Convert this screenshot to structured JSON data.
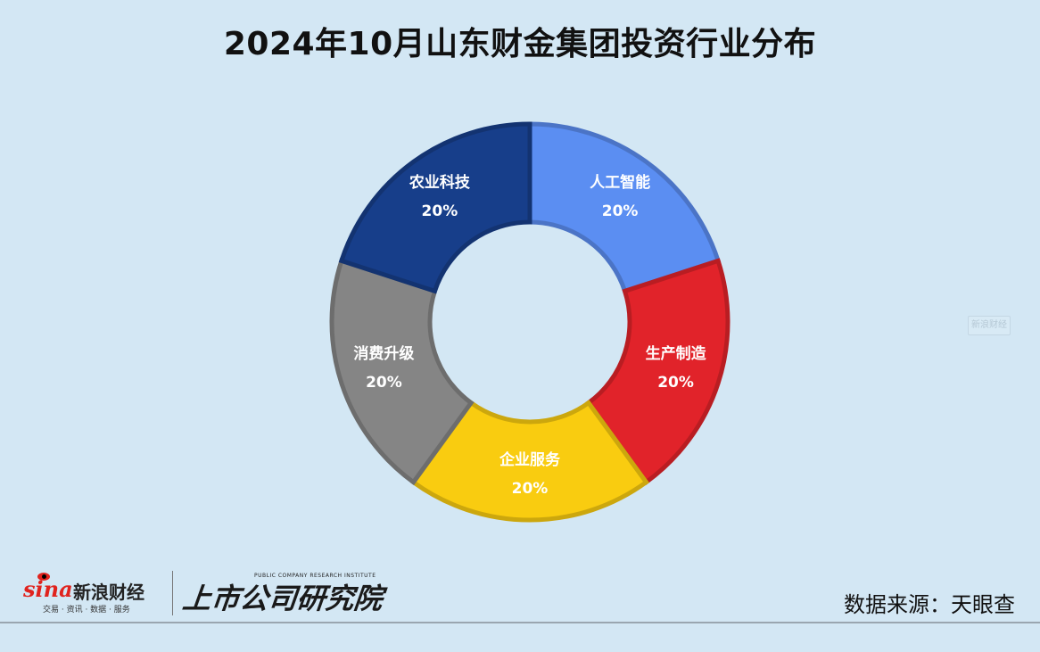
{
  "title": "2024年10月山东财金集团投资行业分布",
  "chart_data": {
    "type": "pie",
    "donut": true,
    "title": "2024年10月山东财金集团投资行业分布",
    "slices": [
      {
        "label": "人工智能",
        "value": 20,
        "value_label": "20%",
        "color": "#5b8ef2"
      },
      {
        "label": "生产制造",
        "value": 20,
        "value_label": "20%",
        "color": "#e1232a"
      },
      {
        "label": "企业服务",
        "value": 20,
        "value_label": "20%",
        "color": "#f9cc10"
      },
      {
        "label": "消费升级",
        "value": 20,
        "value_label": "20%",
        "color": "#858585"
      },
      {
        "label": "农业科技",
        "value": 20,
        "value_label": "20%",
        "color": "#173e8a"
      }
    ]
  },
  "watermark": "新浪财经",
  "logos": {
    "sina": {
      "wordmark": "sina",
      "brand": "新浪财经",
      "tagline": "交易 · 资讯 · 数据 · 服务"
    },
    "institute": {
      "english": "PUBLIC COMPANY RESEARCH INSTITUTE",
      "chinese": "上市公司研究院"
    }
  },
  "source": "数据来源：天眼查",
  "colors": {
    "background": "#d3e7f4",
    "label_text": "#ffffff",
    "sina_red": "#e0231e"
  }
}
